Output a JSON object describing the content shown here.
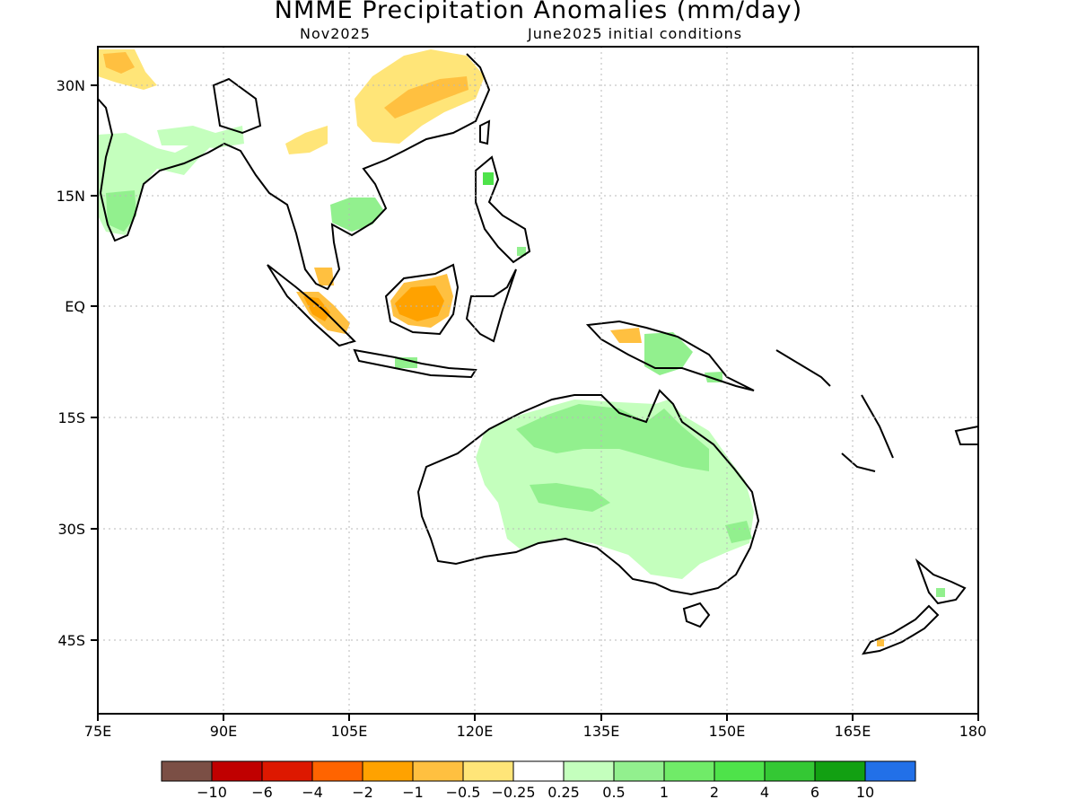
{
  "title": "NMME Precipitation Anomalies (mm/day)",
  "subtitle_left": "Nov2025",
  "subtitle_right": "June2025 initial conditions",
  "lat_labels": [
    "30N",
    "15N",
    "EQ",
    "15S",
    "30S",
    "45S"
  ],
  "lon_labels": [
    "75E",
    "90E",
    "105E",
    "120E",
    "135E",
    "150E",
    "165E",
    "180"
  ],
  "colorbar": {
    "colors": [
      "#7b4f45",
      "#c00000",
      "#dd1800",
      "#ff6400",
      "#ffa200",
      "#ffc040",
      "#ffe578",
      "#ffffff",
      "#c4ffbd",
      "#92f08e",
      "#70eb68",
      "#4ee34a",
      "#34c834",
      "#12a012",
      "#2270e8"
    ],
    "labels": [
      "−10",
      "−6",
      "−4",
      "−2",
      "−1",
      "−0.5",
      "−0.25",
      "0.25",
      "0.5",
      "1",
      "2",
      "4",
      "6",
      "10"
    ]
  },
  "legend": {
    "dry": "#ffa200",
    "wet": "#92f08e"
  }
}
